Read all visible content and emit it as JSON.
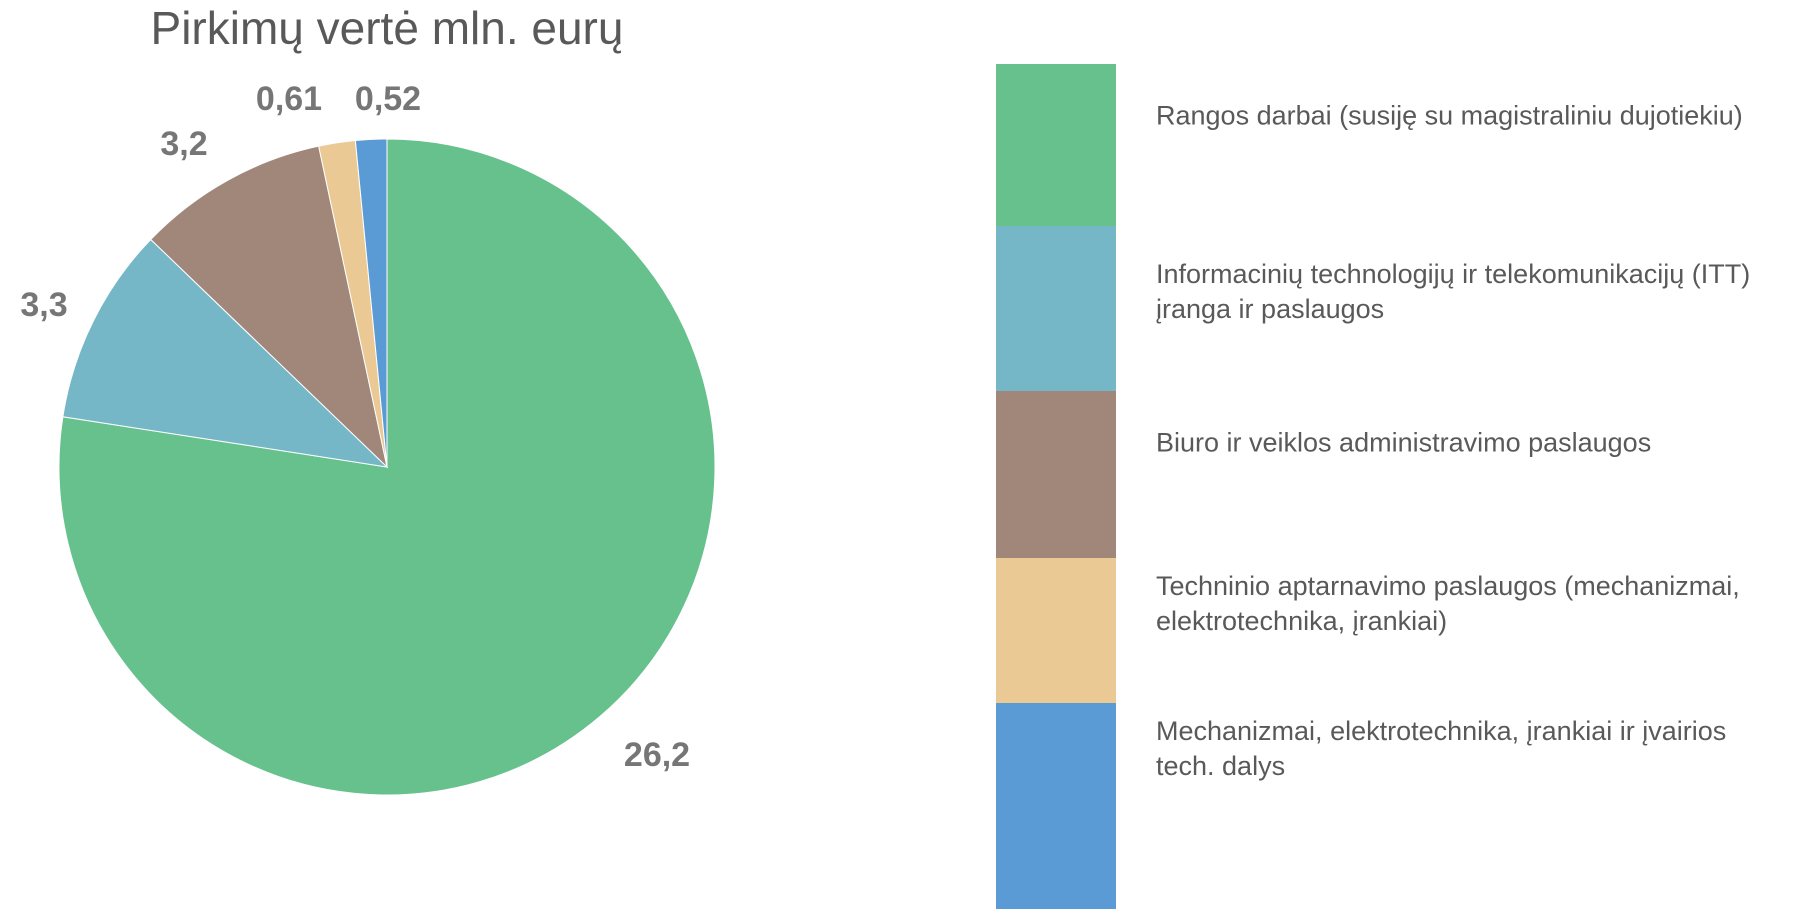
{
  "chart_data": {
    "type": "pie",
    "title": "Pirkimų vertė mln. eurų",
    "categories": [
      "Rangos darbai (susiję su magistraliniu dujotiekiu)",
      "Informacinių technologijų ir telekomunikacijų (ITT) įranga ir paslaugos",
      "Biuro ir veiklos administravimo paslaugos",
      "Techninio aptarnavimo paslaugos (mechanizmai, elektrotechnika, įrankiai)",
      "Mechanizmai, elektrotechnika, įrankiai ir įvairios tech. dalys"
    ],
    "values": [
      26.2,
      3.3,
      3.2,
      0.61,
      0.52
    ],
    "value_labels": [
      "26,2",
      "3,3",
      "3,2",
      "0,61",
      "0,52"
    ],
    "colors": [
      "#66c18c",
      "#75b7c7",
      "#a0877a",
      "#ebc994",
      "#5b9bd5"
    ],
    "legend": "right"
  }
}
